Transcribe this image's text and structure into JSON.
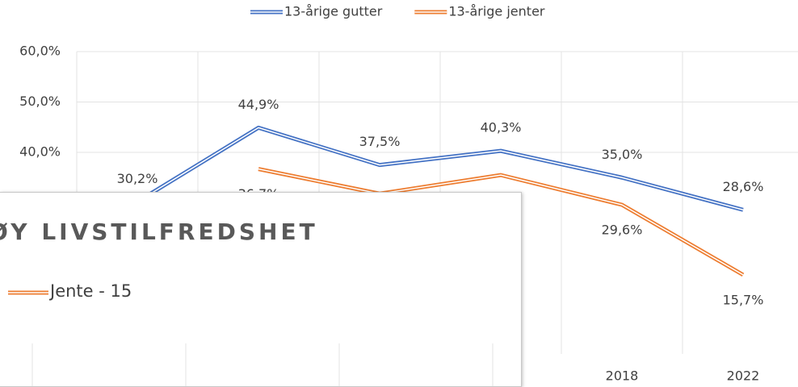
{
  "chart_data": {
    "type": "line",
    "categories": [
      null,
      null,
      null,
      null,
      "2018",
      "2022"
    ],
    "series": [
      {
        "name": "13-årige gutter",
        "color": "#4472c4",
        "values": [
          30.2,
          44.9,
          37.5,
          40.3,
          35.0,
          28.6
        ],
        "value_labels": [
          "30,2%",
          "44,9%",
          "37,5%",
          "40,3%",
          "35,0%",
          "28,6%"
        ]
      },
      {
        "name": "13-årige jenter",
        "color": "#ed7d31",
        "values": [
          null,
          36.7,
          31.8,
          35.5,
          29.6,
          15.7
        ],
        "value_labels": [
          null,
          "36,7%",
          null,
          null,
          "29,6%",
          "15,7%"
        ]
      }
    ],
    "ylim": [
      0,
      60
    ],
    "yticks": [
      {
        "value": 40,
        "label": "40,0%"
      },
      {
        "value": 50,
        "label": "50,0%"
      },
      {
        "value": 60,
        "label": "60,0%"
      }
    ],
    "grid": true,
    "legend": "top"
  },
  "overlay": {
    "title": "ØY LIVSTILFREDSHET",
    "legend": "Jente - 15"
  }
}
